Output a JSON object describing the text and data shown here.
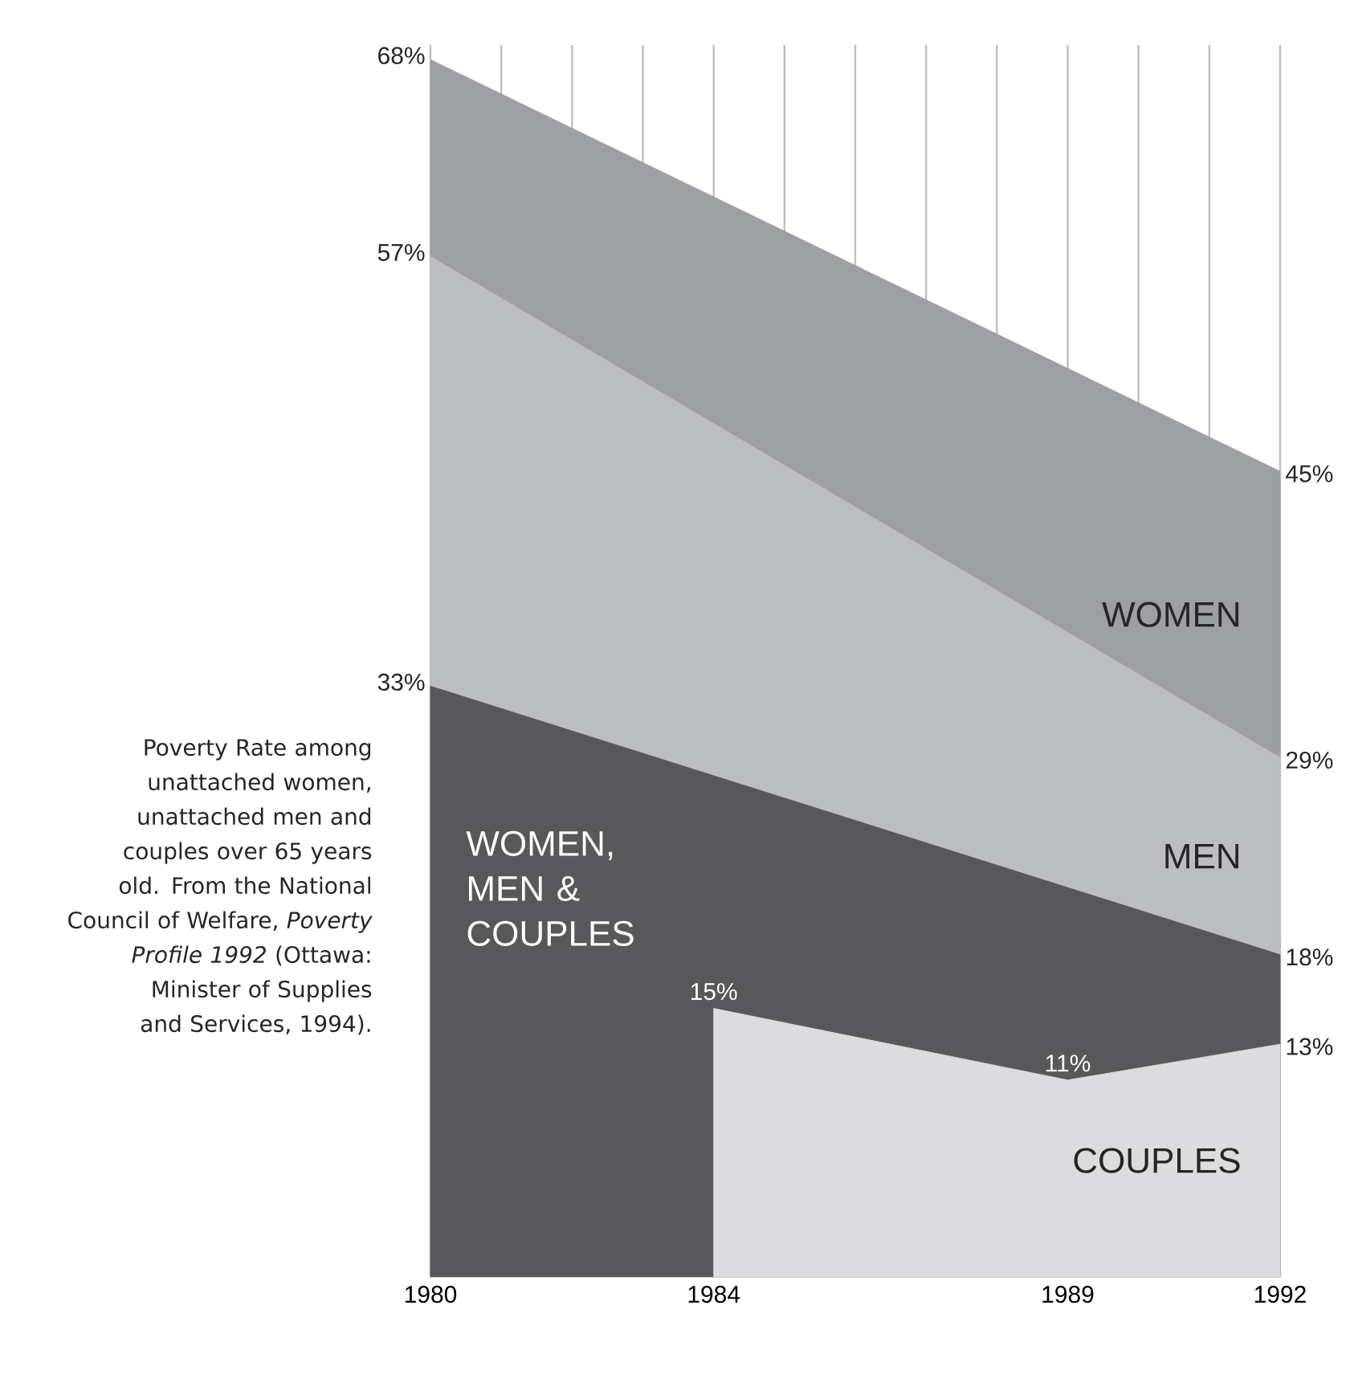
{
  "chart_data": {
    "type": "area",
    "xlim": [
      1980,
      1992
    ],
    "xticks": [
      1980,
      {
        "value": 1981,
        "label": null
      },
      {
        "value": 1982,
        "label": null
      },
      {
        "value": 1983,
        "label": null
      },
      1984,
      {
        "value": 1985,
        "label": null
      },
      {
        "value": 1986,
        "label": null
      },
      {
        "value": 1987,
        "label": null
      },
      {
        "value": 1988,
        "label": null
      },
      1989,
      {
        "value": 1990,
        "label": null
      },
      {
        "value": 1991,
        "label": null
      },
      1992
    ],
    "grid": "x",
    "legend": false,
    "series": [
      {
        "name": "WOMEN",
        "color": "#9e9fa3",
        "x": [
          1980,
          1992
        ],
        "values": [
          68,
          45
        ],
        "value_labels": [
          "68%",
          "45%"
        ]
      },
      {
        "name": "MEN",
        "color": "#bcbdc1",
        "x": [
          1980,
          1992
        ],
        "values": [
          57,
          29
        ],
        "value_labels": [
          "57%",
          "29%"
        ]
      },
      {
        "name": "WOMEN, MEN & COUPLES",
        "color": "#58585a",
        "x": [
          1980,
          1992
        ],
        "values": [
          33,
          18
        ],
        "value_labels": [
          "33%",
          "18%"
        ]
      },
      {
        "name": "COUPLES",
        "color": "#dcdcde",
        "x": [
          1984,
          1989,
          1992
        ],
        "values": [
          15,
          11,
          13
        ],
        "value_labels": [
          "15%",
          "11%",
          "13%"
        ]
      }
    ],
    "annotations": [
      "Poverty Rate among unattached women, unattached men and couples over 65 years old. From the National Council of Welfare, *Poverty Profile 1992* (Ottawa: Minister of Supplies and Services, 1994)."
    ]
  }
}
